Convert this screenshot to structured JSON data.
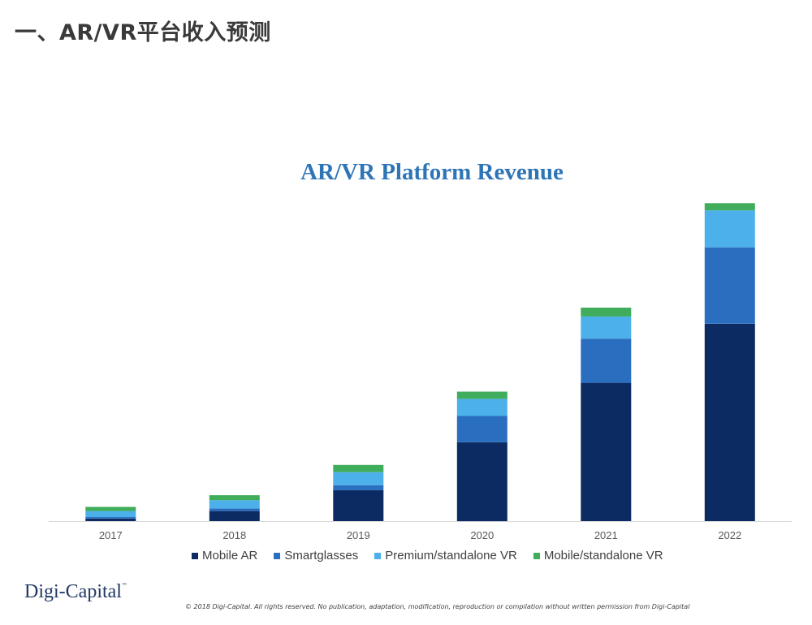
{
  "slide": {
    "heading": "一、AR/VR平台收入预测"
  },
  "footer": {
    "logo_text": "Digi-Capital",
    "logo_mark": "™",
    "copyright": "© 2018 Digi-Capital. All rights reserved. No publication, adaptation, modification, reproduction or compilation without written permission from Digi-Capital"
  },
  "chart_data": {
    "type": "bar",
    "stacked": true,
    "title": "AR/VR Platform Revenue",
    "xlabel": "",
    "ylabel": "",
    "y_axis_labels_shown": false,
    "grid": false,
    "legend_position": "bottom",
    "ylim": [
      0,
      100
    ],
    "categories": [
      "2017",
      "2018",
      "2019",
      "2020",
      "2021",
      "2022"
    ],
    "series": [
      {
        "name": "Mobile AR",
        "color": "#0d2b63",
        "values": [
          0.8,
          3.2,
          9.8,
          25.0,
          43.8,
          62.5
        ]
      },
      {
        "name": "Smartglasses",
        "color": "#2a6fbf",
        "values": [
          0.5,
          0.8,
          1.6,
          8.3,
          14.0,
          24.2
        ]
      },
      {
        "name": "Premium/standalone VR",
        "color": "#4cb0ea",
        "values": [
          1.9,
          2.6,
          4.1,
          5.4,
          7.0,
          11.7
        ]
      },
      {
        "name": "Mobile/standalone VR",
        "color": "#3fad5b",
        "values": [
          1.3,
          1.6,
          2.3,
          2.3,
          2.8,
          2.3
        ]
      }
    ]
  }
}
